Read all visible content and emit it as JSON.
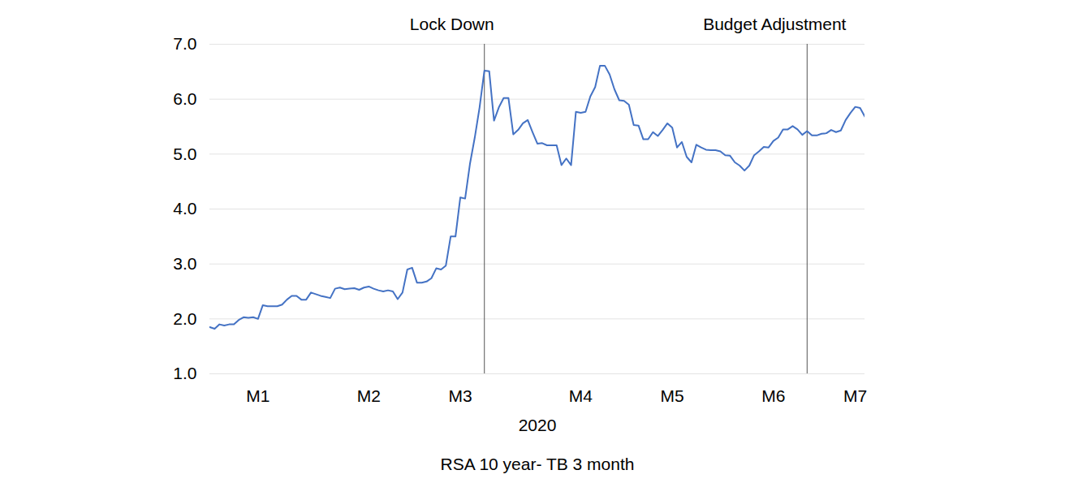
{
  "chart_data": {
    "type": "line",
    "title": "RSA 10 year- TB 3 month",
    "x_label": "2020",
    "color": "#4472c4",
    "grid": true,
    "ylim": [
      1,
      7
    ],
    "yticks": [
      1,
      2,
      3,
      4,
      5,
      6,
      7
    ],
    "annotations": [
      {
        "text": "Lock Down",
        "x": 57
      },
      {
        "text": "Budget Adjustment",
        "x": 124
      }
    ],
    "categories": [
      null,
      null,
      null,
      null,
      null,
      null,
      null,
      null,
      null,
      null,
      "M1",
      null,
      null,
      null,
      null,
      null,
      null,
      null,
      null,
      null,
      null,
      null,
      null,
      null,
      null,
      null,
      null,
      null,
      null,
      null,
      null,
      null,
      null,
      "M2",
      null,
      null,
      null,
      null,
      null,
      null,
      null,
      null,
      null,
      null,
      null,
      null,
      null,
      null,
      null,
      null,
      null,
      null,
      "M3",
      null,
      null,
      null,
      null,
      null,
      null,
      null,
      null,
      null,
      null,
      null,
      null,
      null,
      null,
      null,
      null,
      null,
      null,
      null,
      null,
      null,
      null,
      null,
      null,
      "M4",
      null,
      null,
      null,
      null,
      null,
      null,
      null,
      null,
      null,
      null,
      null,
      null,
      null,
      null,
      null,
      null,
      null,
      null,
      "M5",
      null,
      null,
      null,
      null,
      null,
      null,
      null,
      null,
      null,
      null,
      null,
      null,
      null,
      null,
      null,
      null,
      null,
      null,
      null,
      null,
      "M6",
      null,
      null,
      null,
      null,
      null,
      null,
      null,
      null,
      null,
      null,
      null,
      null,
      null,
      null,
      null,
      null,
      "M7",
      null,
      null
    ],
    "values": [
      1.85,
      1.82,
      1.9,
      1.88,
      1.9,
      1.9,
      1.98,
      2.03,
      2.02,
      2.03,
      2.0,
      2.25,
      2.23,
      2.23,
      2.23,
      2.26,
      2.35,
      2.42,
      2.42,
      2.35,
      2.35,
      2.48,
      2.45,
      2.42,
      2.4,
      2.38,
      2.55,
      2.57,
      2.54,
      2.55,
      2.56,
      2.53,
      2.57,
      2.59,
      2.55,
      2.52,
      2.5,
      2.52,
      2.5,
      2.36,
      2.48,
      2.9,
      2.93,
      2.66,
      2.66,
      2.68,
      2.74,
      2.92,
      2.9,
      2.97,
      3.5,
      3.5,
      4.21,
      4.19,
      4.82,
      5.3,
      5.85,
      6.52,
      6.51,
      5.61,
      5.85,
      6.02,
      6.02,
      5.36,
      5.44,
      5.56,
      5.62,
      5.4,
      5.19,
      5.2,
      5.16,
      5.16,
      5.16,
      4.8,
      4.92,
      4.8,
      5.77,
      5.75,
      5.77,
      6.05,
      6.22,
      6.61,
      6.61,
      6.45,
      6.18,
      5.98,
      5.97,
      5.9,
      5.53,
      5.52,
      5.27,
      5.27,
      5.4,
      5.33,
      5.44,
      5.56,
      5.48,
      5.12,
      5.22,
      4.95,
      4.85,
      5.17,
      5.12,
      5.08,
      5.07,
      5.07,
      5.05,
      4.98,
      4.97,
      4.85,
      4.79,
      4.7,
      4.79,
      4.98,
      5.05,
      5.13,
      5.12,
      5.24,
      5.3,
      5.45,
      5.45,
      5.51,
      5.45,
      5.35,
      5.42,
      5.34,
      5.34,
      5.37,
      5.38,
      5.44,
      5.4,
      5.43,
      5.62,
      5.75,
      5.86,
      5.84,
      5.68
    ]
  }
}
